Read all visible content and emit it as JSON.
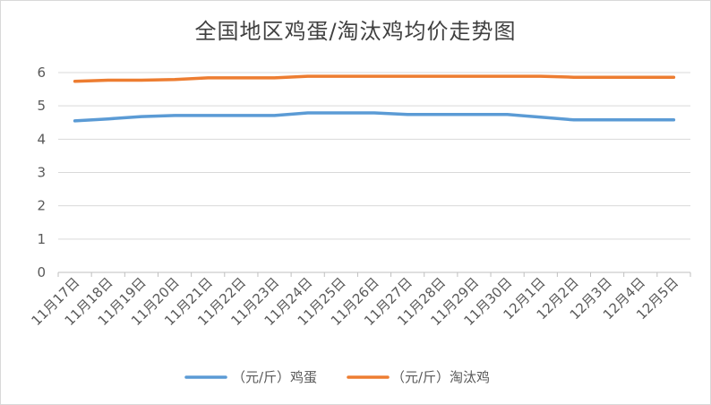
{
  "chart_data": {
    "type": "line",
    "title": "全国地区鸡蛋/淘汰鸡均价走势图",
    "categories": [
      "11月17日",
      "11月18日",
      "11月19日",
      "11月20日",
      "11月21日",
      "11月22日",
      "11月23日",
      "11月24日",
      "11月25日",
      "11月26日",
      "11月27日",
      "11月28日",
      "11月29日",
      "11月30日",
      "12月1日",
      "12月2日",
      "12月3日",
      "12月4日",
      "12月5日"
    ],
    "series": [
      {
        "name": "（元/斤）鸡蛋",
        "color": "#5b9bd5",
        "values": [
          4.55,
          4.61,
          4.68,
          4.71,
          4.71,
          4.71,
          4.71,
          4.79,
          4.79,
          4.79,
          4.74,
          4.74,
          4.74,
          4.74,
          4.66,
          4.58,
          4.58,
          4.58,
          4.58
        ]
      },
      {
        "name": "（元/斤）淘汰鸡",
        "color": "#ed7d31",
        "values": [
          5.74,
          5.77,
          5.77,
          5.79,
          5.84,
          5.84,
          5.84,
          5.89,
          5.89,
          5.89,
          5.89,
          5.89,
          5.89,
          5.89,
          5.89,
          5.86,
          5.86,
          5.86,
          5.86
        ]
      }
    ],
    "ylim": [
      0,
      6
    ],
    "yticks": [
      "0",
      "1",
      "2",
      "3",
      "4",
      "5",
      "6"
    ],
    "grid": true,
    "legend": "bottom",
    "xlabel": "",
    "ylabel": ""
  }
}
